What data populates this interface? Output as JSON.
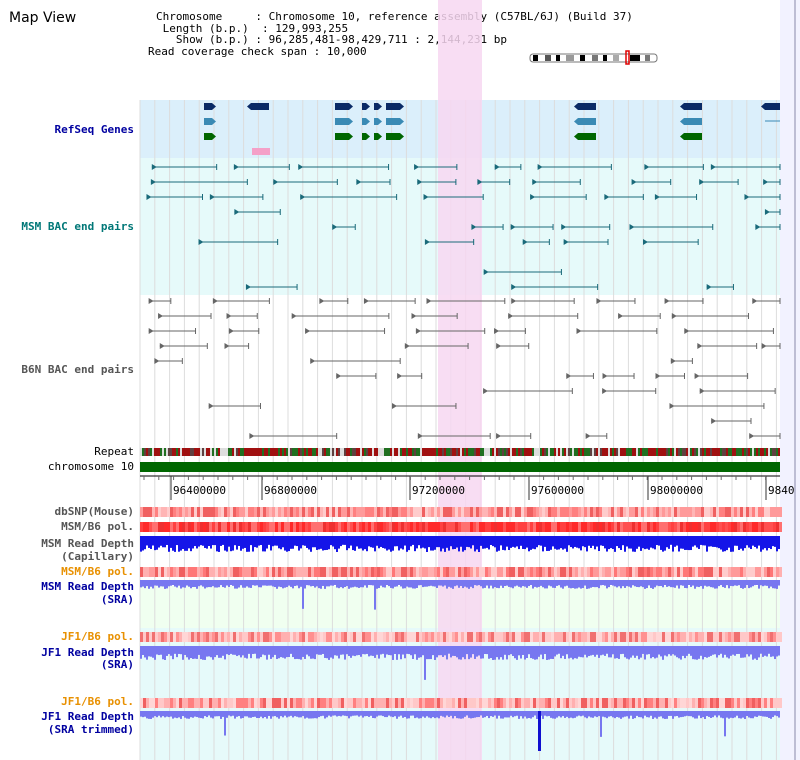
{
  "title": "Map View",
  "info": {
    "chromosome_key": "Chromosome",
    "chromosome_value": "Chromosome 10, reference assembly (C57BL/6J) (Build 37)",
    "length_key": "Length (b.p.)",
    "length_value": "129,993,255",
    "show_key": "Show (b.p.)",
    "show_value": "96,285,481-98,429,711 : 2,144,231 bp",
    "coverage_key": "Read coverage check span",
    "coverage_value": "10,000"
  },
  "tracks": {
    "refseq": "RefSeq Genes",
    "msm_bac": "MSM BAC end pairs",
    "b6n_bac": "B6N BAC end pairs",
    "repeat": "Repeat",
    "chromosome": "chromosome 10",
    "dbsnp": "dbSNP(Mouse)",
    "msm_b6_pol": "MSM/B6 pol.",
    "msm_depth_cap_1": "MSM Read Depth",
    "msm_depth_cap_2": "(Capillary)",
    "msm_b6_pol_2": "MSM/B6 pol.",
    "msm_depth_sra_1": "MSM Read Depth",
    "msm_depth_sra_2": "(SRA)",
    "jf1_b6_pol": "JF1/B6 pol.",
    "jf1_depth_sra_1": "JF1 Read Depth",
    "jf1_depth_sra_2": "(SRA)",
    "jf1_b6_pol_2": "JF1/B6 pol.",
    "jf1_depth_trim_1": "JF1 Read Depth",
    "jf1_depth_trim_2": "(SRA trimmed)"
  },
  "ruler": {
    "ticks": [
      "96400000",
      "96800000",
      "97200000",
      "97600000",
      "98000000",
      "9840"
    ]
  },
  "colors": {
    "refseq_bg": "#dbeffb",
    "msm_bg": "#e6fafa",
    "highlight": "#f7d7f1",
    "label_blue": "#0000a0",
    "label_teal": "#007777",
    "label_gray": "#555555",
    "label_orange": "#e89000",
    "chromosome_bar": "#006600",
    "depth_dark": "#1515e8",
    "depth_light": "#7777f0",
    "gene_navy": "#0a2a66",
    "gene_teal": "#3a8ab4",
    "gene_green": "#006600"
  }
}
